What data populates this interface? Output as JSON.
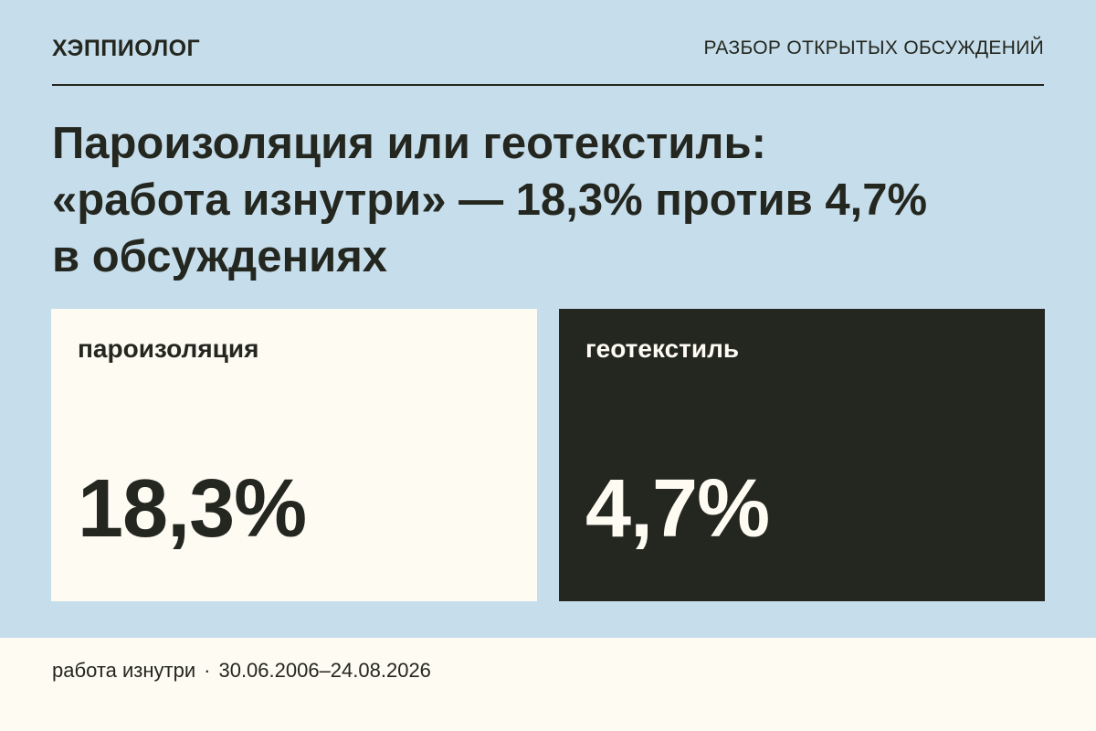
{
  "header": {
    "brand": "ХЭППИОЛОГ",
    "section": "РАЗБОР ОТКРЫТЫХ ОБСУЖДЕНИЙ"
  },
  "headline": {
    "line1": "Пароизоляция или геотекстиль:",
    "line2": "«работа изнутри» — 18,3% против 4,7%",
    "line3": "в обсуждениях"
  },
  "cards": [
    {
      "label": "пароизоляция",
      "value": "18,3%",
      "background": "#fefbf3",
      "text_color": "#24271f"
    },
    {
      "label": "геотекстиль",
      "value": "4,7%",
      "background": "#24271f",
      "text_color": "#fefbf3"
    }
  ],
  "footer": {
    "topic": "работа изнутри",
    "separator": "·",
    "period": "30.06.2006–24.08.2026"
  },
  "colors": {
    "background": "#c6ddeb",
    "dark": "#24271f",
    "light": "#fefbf3"
  }
}
